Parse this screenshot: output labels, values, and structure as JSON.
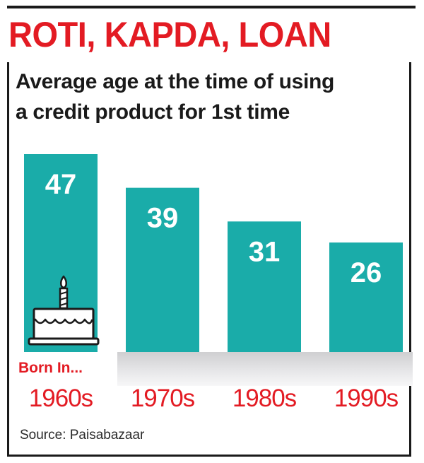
{
  "headline": "ROTI, KAPDA, LOAN",
  "subtitle_lines": [
    "Average age at the time of using",
    "a credit product for 1st time"
  ],
  "born_label": "Born In...",
  "source": "Source: Paisabazaar",
  "colors": {
    "bar": "#1aaca9",
    "headline": "#e31b23",
    "category": "#e31b23",
    "value_label": "#ffffff"
  },
  "icons": [
    "birthday-cake-icon"
  ],
  "chart_data": {
    "type": "bar",
    "categories": [
      "1960s",
      "1970s",
      "1980s",
      "1990s"
    ],
    "values": [
      47,
      39,
      31,
      26
    ],
    "title": "Average age at the time of using a credit product for 1st time",
    "xlabel": "Born In...",
    "ylabel": "",
    "ylim": [
      0,
      47
    ],
    "grid": false,
    "legend": "none"
  }
}
